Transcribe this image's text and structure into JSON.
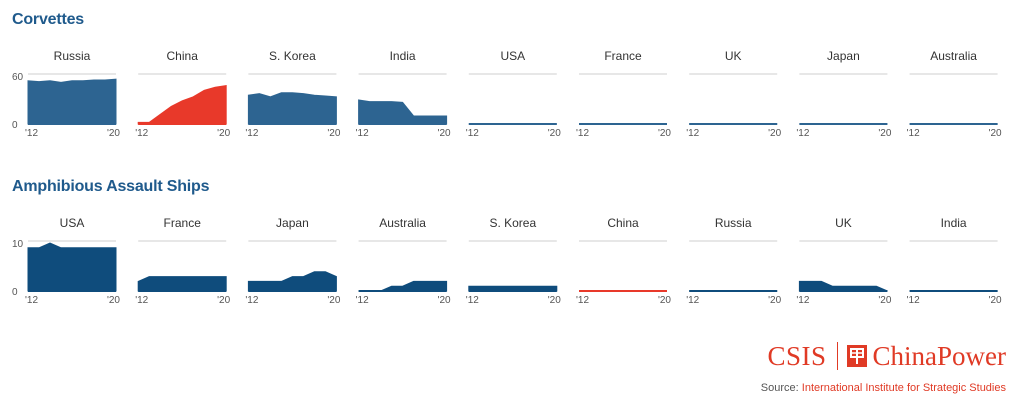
{
  "colors": {
    "blue": "#2d6491",
    "dark_blue": "#0f4c7c",
    "red": "#e8392a",
    "axis": "#cfcfcf",
    "tick_text": "#555555"
  },
  "sections": {
    "corvettes_title": "Corvettes",
    "amphibious_title": "Amphibious Assault Ships"
  },
  "footer": {
    "csis": "CSIS",
    "brand": "ChinaPower",
    "source_prefix": "Source: ",
    "source_name": "International Institute for Strategic Studies"
  },
  "chart_data": [
    {
      "type": "area",
      "title": "Corvettes",
      "x": [
        2012,
        2013,
        2014,
        2015,
        2016,
        2017,
        2018,
        2019,
        2020
      ],
      "x_tick_labels": [
        "'12",
        "'20"
      ],
      "ylim": [
        0,
        60
      ],
      "y_ticks": [
        0,
        60
      ],
      "panels": [
        {
          "name": "Russia",
          "color": "blue",
          "values": [
            54,
            53,
            54,
            52,
            54,
            54,
            55,
            55,
            56
          ]
        },
        {
          "name": "China",
          "color": "red",
          "values": [
            2,
            2,
            12,
            22,
            29,
            34,
            42,
            46,
            48
          ]
        },
        {
          "name": "S. Korea",
          "color": "blue",
          "values": [
            36,
            38,
            34,
            39,
            39,
            38,
            36,
            35,
            34
          ]
        },
        {
          "name": "India",
          "color": "blue",
          "values": [
            30,
            28,
            28,
            28,
            27,
            10,
            10,
            10,
            10
          ]
        },
        {
          "name": "USA",
          "color": "blue",
          "values": [
            0,
            0,
            0,
            0,
            0,
            0,
            0,
            0,
            0
          ]
        },
        {
          "name": "France",
          "color": "blue",
          "values": [
            0,
            0,
            0,
            0,
            0,
            0,
            0,
            0,
            0
          ]
        },
        {
          "name": "UK",
          "color": "blue",
          "values": [
            0,
            0,
            0,
            0,
            0,
            0,
            0,
            0,
            0
          ]
        },
        {
          "name": "Japan",
          "color": "blue",
          "values": [
            0,
            0,
            0,
            0,
            0,
            0,
            0,
            0,
            0
          ]
        },
        {
          "name": "Australia",
          "color": "blue",
          "values": [
            0,
            0,
            0,
            0,
            0,
            0,
            0,
            0,
            0
          ]
        }
      ]
    },
    {
      "type": "area",
      "title": "Amphibious Assault Ships",
      "x": [
        2012,
        2013,
        2014,
        2015,
        2016,
        2017,
        2018,
        2019,
        2020
      ],
      "x_tick_labels": [
        "'12",
        "'20"
      ],
      "ylim": [
        0,
        10
      ],
      "y_ticks": [
        0,
        10
      ],
      "panels": [
        {
          "name": "USA",
          "color": "dark_blue",
          "values": [
            9,
            9,
            10,
            9,
            9,
            9,
            9,
            9,
            9
          ]
        },
        {
          "name": "France",
          "color": "dark_blue",
          "values": [
            2,
            3,
            3,
            3,
            3,
            3,
            3,
            3,
            3
          ]
        },
        {
          "name": "Japan",
          "color": "dark_blue",
          "values": [
            2,
            2,
            2,
            2,
            3,
            3,
            4,
            4,
            3
          ]
        },
        {
          "name": "Australia",
          "color": "dark_blue",
          "values": [
            0,
            0,
            0,
            1,
            1,
            2,
            2,
            2,
            2
          ]
        },
        {
          "name": "S. Korea",
          "color": "dark_blue",
          "values": [
            1,
            1,
            1,
            1,
            1,
            1,
            1,
            1,
            1
          ]
        },
        {
          "name": "China",
          "color": "red",
          "values": [
            0,
            0,
            0,
            0,
            0,
            0,
            0,
            0,
            0
          ]
        },
        {
          "name": "Russia",
          "color": "dark_blue",
          "values": [
            0,
            0,
            0,
            0,
            0,
            0,
            0,
            0,
            0
          ]
        },
        {
          "name": "UK",
          "color": "dark_blue",
          "values": [
            2,
            2,
            2,
            1,
            1,
            1,
            1,
            1,
            0
          ]
        },
        {
          "name": "India",
          "color": "dark_blue",
          "values": [
            0,
            0,
            0,
            0,
            0,
            0,
            0,
            0,
            0
          ]
        }
      ]
    }
  ]
}
